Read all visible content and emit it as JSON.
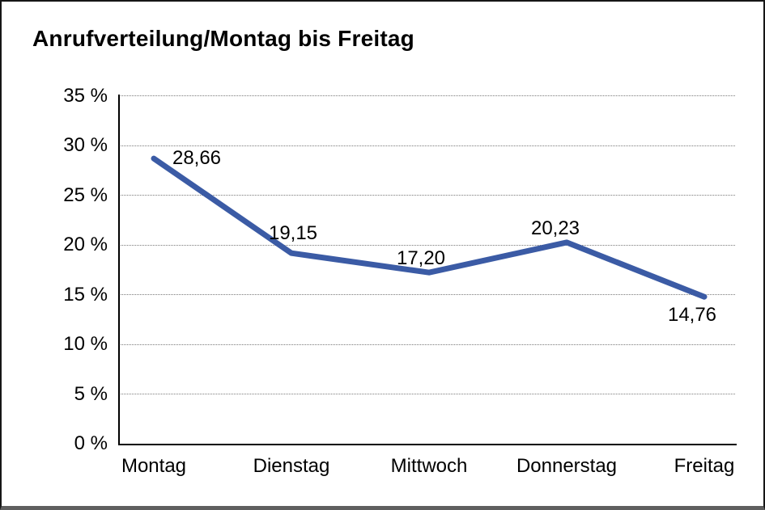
{
  "window": {
    "title": "Anrufverteilung/Montag bis Freitag"
  },
  "chart_data": {
    "type": "line",
    "title": "Anrufverteilung/Montag bis Freitag",
    "categories": [
      "Montag",
      "Dienstag",
      "Mittwoch",
      "Donnerstag",
      "Freitag"
    ],
    "values": [
      28.66,
      19.15,
      17.2,
      20.23,
      14.76
    ],
    "data_labels": [
      "28,66",
      "19,15",
      "17,20",
      "20,23",
      "14,76"
    ],
    "ytick_labels": [
      "35 %",
      "30 %",
      "25 %",
      "20 %",
      "15 %",
      "10 %",
      "5 %",
      "0 %"
    ],
    "xlabel": "",
    "ylabel": "",
    "ylim": [
      0,
      35
    ],
    "ytick_step": 5,
    "grid": "horizontal-dotted",
    "legend_position": "none",
    "line_color": "#3B5BA5",
    "text_color": "#000000",
    "background_color": "#FFFFFF"
  }
}
